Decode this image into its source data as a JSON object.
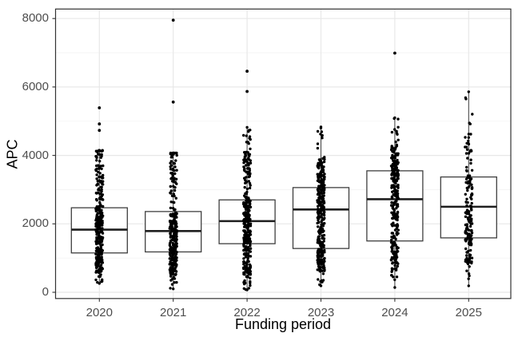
{
  "colors": {
    "panel_background": "#ffffff",
    "grid_major": "#e8e8e8",
    "grid_minor": "#f3f3f3",
    "panel_border": "#333333",
    "box_border": "#3f3f3f",
    "box_fill": "#ffffff",
    "median_line": "#1f1f1f",
    "point": "#000000",
    "tick_mark": "#333333",
    "tick_label": "#4d4d4d",
    "axis_title": "#000000"
  },
  "chart_data": {
    "type": "boxplot",
    "title": "",
    "xlabel": "Funding period",
    "ylabel": "APC",
    "categories": [
      "2020",
      "2021",
      "2022",
      "2023",
      "2024",
      "2025"
    ],
    "y_ticks": [
      0,
      2000,
      4000,
      6000,
      8000
    ],
    "y_minor_ticks": [
      1000,
      3000,
      5000,
      7000
    ],
    "ylim": [
      -170,
      8280
    ],
    "grid": true,
    "legend": false,
    "points_overlay": "dense vertical jitter strip per category",
    "series": [
      {
        "category": "2020",
        "min": 260,
        "p05": 600,
        "q1": 1150,
        "median": 1830,
        "q3": 2470,
        "dense_top": 4120,
        "whisker_high": 4150,
        "outliers": [
          4730,
          4920,
          5390
        ],
        "n_points": 320
      },
      {
        "category": "2021",
        "min": 100,
        "p05": 500,
        "q1": 1180,
        "median": 1790,
        "q3": 2360,
        "dense_top": 4070,
        "whisker_high": 4070,
        "outliers": [
          5560,
          7950
        ],
        "n_points": 310
      },
      {
        "category": "2022",
        "min": 70,
        "p05": 450,
        "q1": 1420,
        "median": 2080,
        "q3": 2700,
        "dense_top": 4100,
        "whisker_high": 4820,
        "outliers": [
          5870,
          6460
        ],
        "n_points": 320
      },
      {
        "category": "2023",
        "min": 190,
        "p05": 600,
        "q1": 1280,
        "median": 2420,
        "q3": 3060,
        "dense_top": 3950,
        "whisker_high": 4830,
        "outliers": [],
        "n_points": 330
      },
      {
        "category": "2024",
        "min": 140,
        "p05": 600,
        "q1": 1500,
        "median": 2720,
        "q3": 3550,
        "dense_top": 4300,
        "whisker_high": 5100,
        "outliers": [
          6990
        ],
        "n_points": 290
      },
      {
        "category": "2025",
        "min": 190,
        "p05": 700,
        "q1": 1590,
        "median": 2500,
        "q3": 3370,
        "dense_top": 4650,
        "whisker_high": 5860,
        "outliers": [],
        "n_points": 175
      }
    ]
  }
}
